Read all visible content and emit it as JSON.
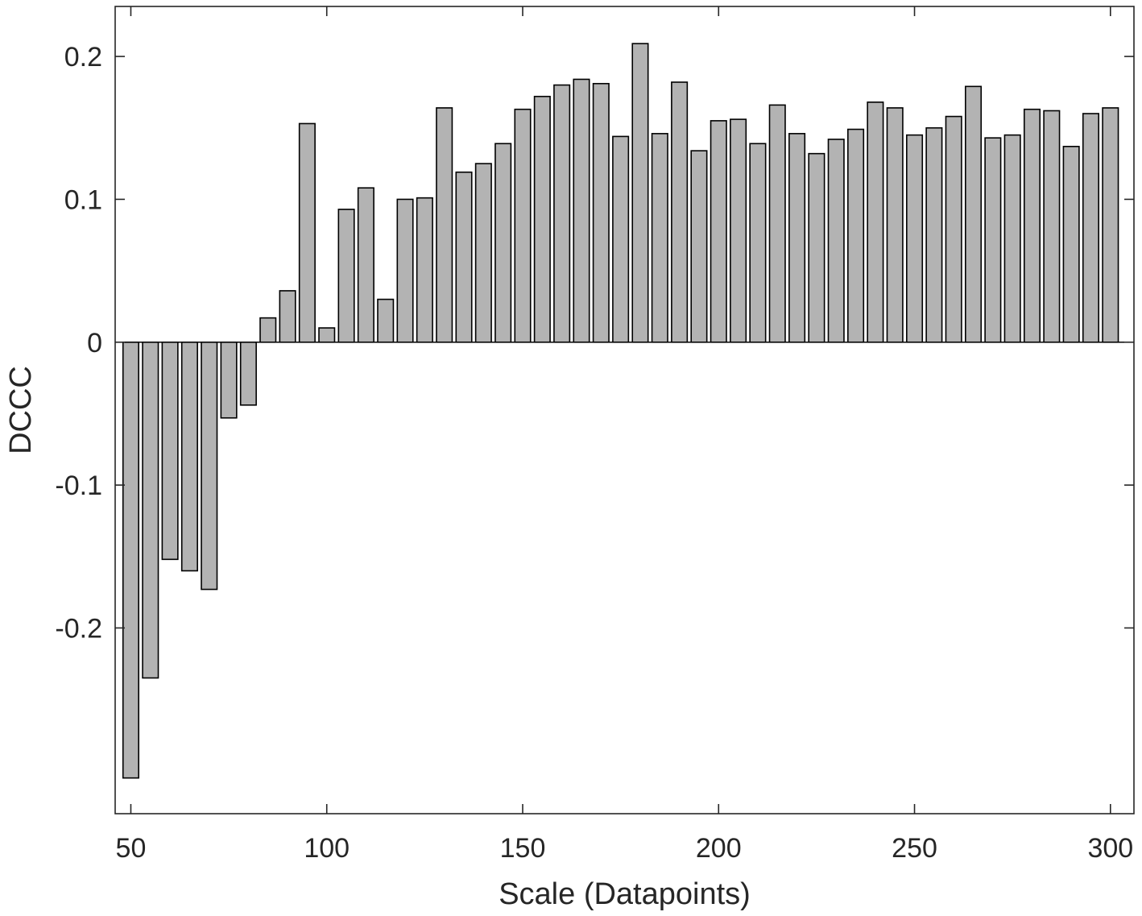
{
  "chart_data": {
    "type": "bar",
    "title": "",
    "xlabel": "Scale (Datapoints)",
    "ylabel": "DCCC",
    "x": [
      50,
      55,
      60,
      65,
      70,
      75,
      80,
      85,
      90,
      95,
      100,
      105,
      110,
      115,
      120,
      125,
      130,
      135,
      140,
      145,
      150,
      155,
      160,
      165,
      170,
      175,
      180,
      185,
      190,
      195,
      200,
      205,
      210,
      215,
      220,
      225,
      230,
      235,
      240,
      245,
      250,
      255,
      260,
      265,
      270,
      275,
      280,
      285,
      290,
      295,
      300
    ],
    "values": [
      -0.305,
      -0.235,
      -0.152,
      -0.16,
      -0.173,
      -0.053,
      -0.044,
      0.017,
      0.036,
      0.153,
      0.01,
      0.093,
      0.108,
      0.03,
      0.1,
      0.101,
      0.164,
      0.119,
      0.125,
      0.139,
      0.163,
      0.172,
      0.18,
      0.184,
      0.181,
      0.144,
      0.209,
      0.146,
      0.182,
      0.134,
      0.155,
      0.156,
      0.139,
      0.166,
      0.146,
      0.132,
      0.142,
      0.149,
      0.168,
      0.164,
      0.145,
      0.15,
      0.158,
      0.179,
      0.143,
      0.145,
      0.163,
      0.162,
      0.137,
      0.16,
      0.164
    ],
    "xlim": [
      46,
      306
    ],
    "ylim": [
      -0.33,
      0.235
    ],
    "xticks": [
      50,
      100,
      150,
      200,
      250,
      300
    ],
    "xtick_labels": [
      "50",
      "100",
      "150",
      "200",
      "250",
      "300"
    ],
    "yticks": [
      -0.2,
      -0.1,
      0,
      0.1,
      0.2
    ],
    "ytick_labels": [
      "-0.2",
      "-0.1",
      "0",
      "0.1",
      "0.2"
    ],
    "bar_width_units": 4,
    "grid": false,
    "legend": "none",
    "colors": {
      "bar_fill": "#b3b3b3",
      "bar_edge": "#000000",
      "axis": "#262626",
      "text": "#262626"
    }
  }
}
